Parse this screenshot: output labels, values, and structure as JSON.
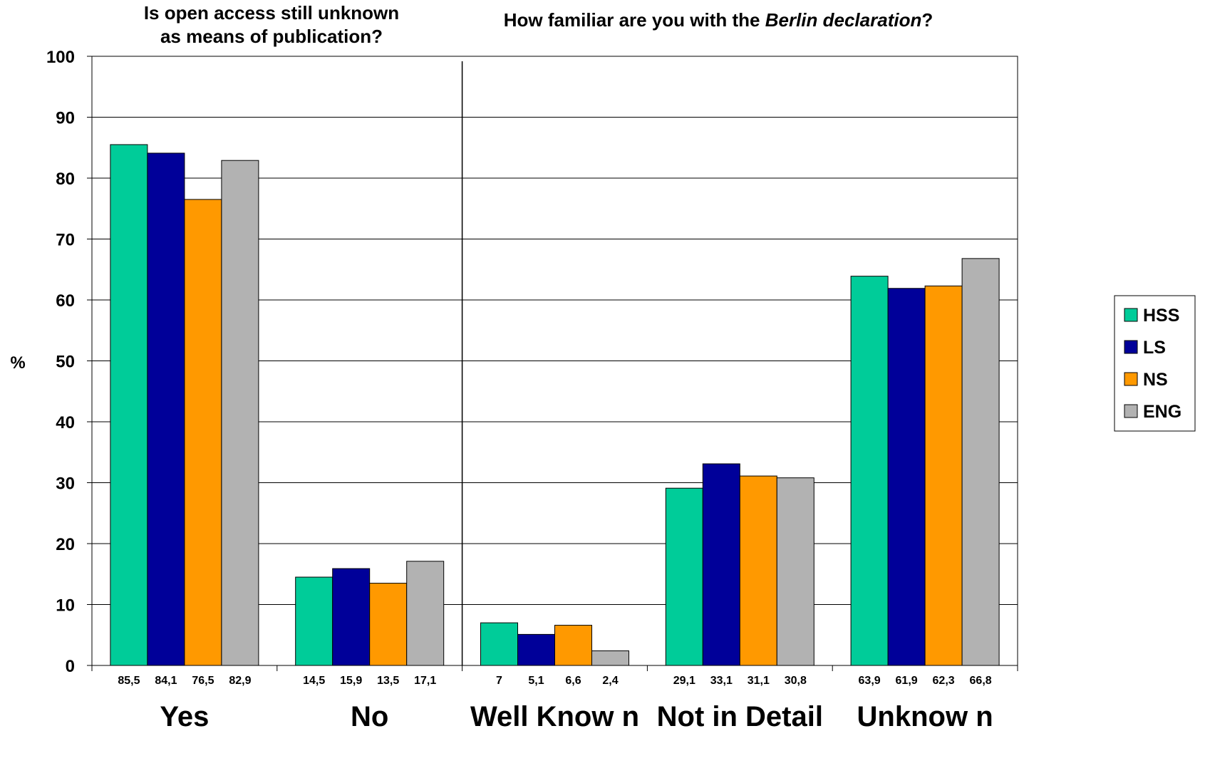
{
  "chart_data": {
    "type": "bar",
    "titles": [
      {
        "lines": [
          "Is open access still unknown",
          "as means of publication?"
        ]
      },
      {
        "segments": [
          {
            "text": "How familiar are you with the ",
            "italic": false
          },
          {
            "text": "Berlin declaration",
            "italic": true
          },
          {
            "text": "?",
            "italic": false
          }
        ]
      }
    ],
    "ylabel": "%",
    "xlabel": "",
    "ylim": [
      0,
      100
    ],
    "yticks": [
      "0",
      "10",
      "20",
      "30",
      "40",
      "50",
      "60",
      "70",
      "80",
      "90",
      "100"
    ],
    "grid": true,
    "legend_position": "right",
    "categories": [
      "Yes",
      "No",
      "Well Know n",
      "Not in Detail",
      "Unknow n"
    ],
    "series": [
      {
        "name": "HSS",
        "color": "#00CC99",
        "values": [
          85.5,
          14.5,
          7,
          29.1,
          63.9
        ],
        "labels": [
          "85,5",
          "14,5",
          "7",
          "29,1",
          "63,9"
        ]
      },
      {
        "name": "LS",
        "color": "#000099",
        "values": [
          84.1,
          15.9,
          5.1,
          33.1,
          61.9
        ],
        "labels": [
          "84,1",
          "15,9",
          "5,1",
          "33,1",
          "61,9"
        ]
      },
      {
        "name": "NS",
        "color": "#FF9900",
        "values": [
          76.5,
          13.5,
          6.6,
          31.1,
          62.3
        ],
        "labels": [
          "76,5",
          "13,5",
          "6,6",
          "31,1",
          "62,3"
        ]
      },
      {
        "name": "ENG",
        "color": "#B2B2B2",
        "values": [
          82.9,
          17.1,
          2.4,
          30.8,
          66.8
        ],
        "labels": [
          "82,9",
          "17,1",
          "2,4",
          "30,8",
          "66,8"
        ]
      }
    ]
  }
}
